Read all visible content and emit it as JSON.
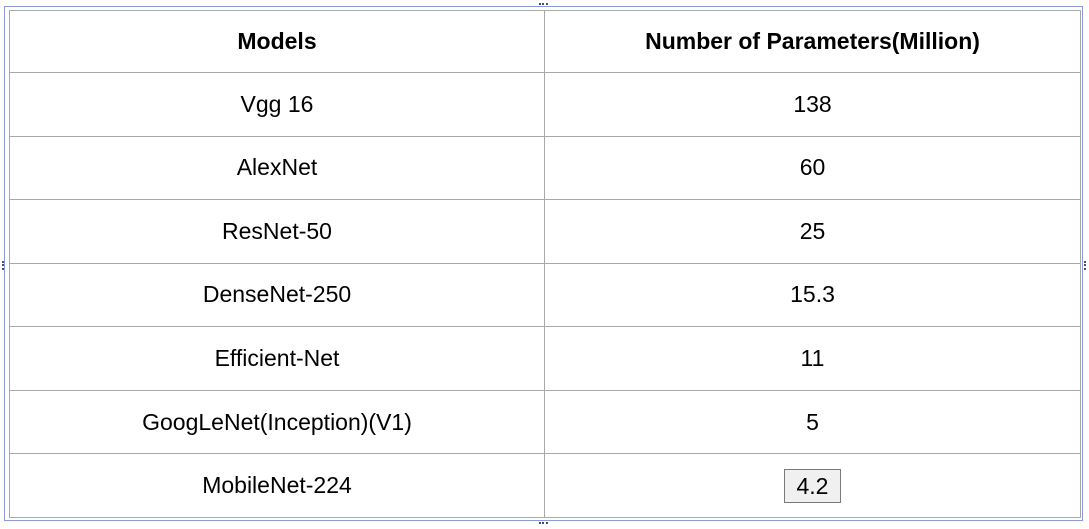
{
  "table": {
    "headers": {
      "model": "Models",
      "params": "Number of Parameters(Million)"
    },
    "rows": [
      {
        "model": "Vgg 16",
        "params": "138"
      },
      {
        "model": "AlexNet",
        "params": "60"
      },
      {
        "model": "ResNet-50",
        "params": "25"
      },
      {
        "model": "DenseNet-250",
        "params": "15.3"
      },
      {
        "model": "Efficient-Net",
        "params": "11"
      },
      {
        "model": "GoogLeNet(Inception)(V1)",
        "params": "5"
      },
      {
        "model": "MobileNet-224",
        "params": "4.2"
      }
    ],
    "selected_cell": "rows.6.params"
  },
  "colors": {
    "frame_border": "#8c9ad6",
    "cell_border": "#a9a9a9",
    "handle": "#4a4a8a",
    "selected_cell_bg": "#f0f0f0"
  }
}
